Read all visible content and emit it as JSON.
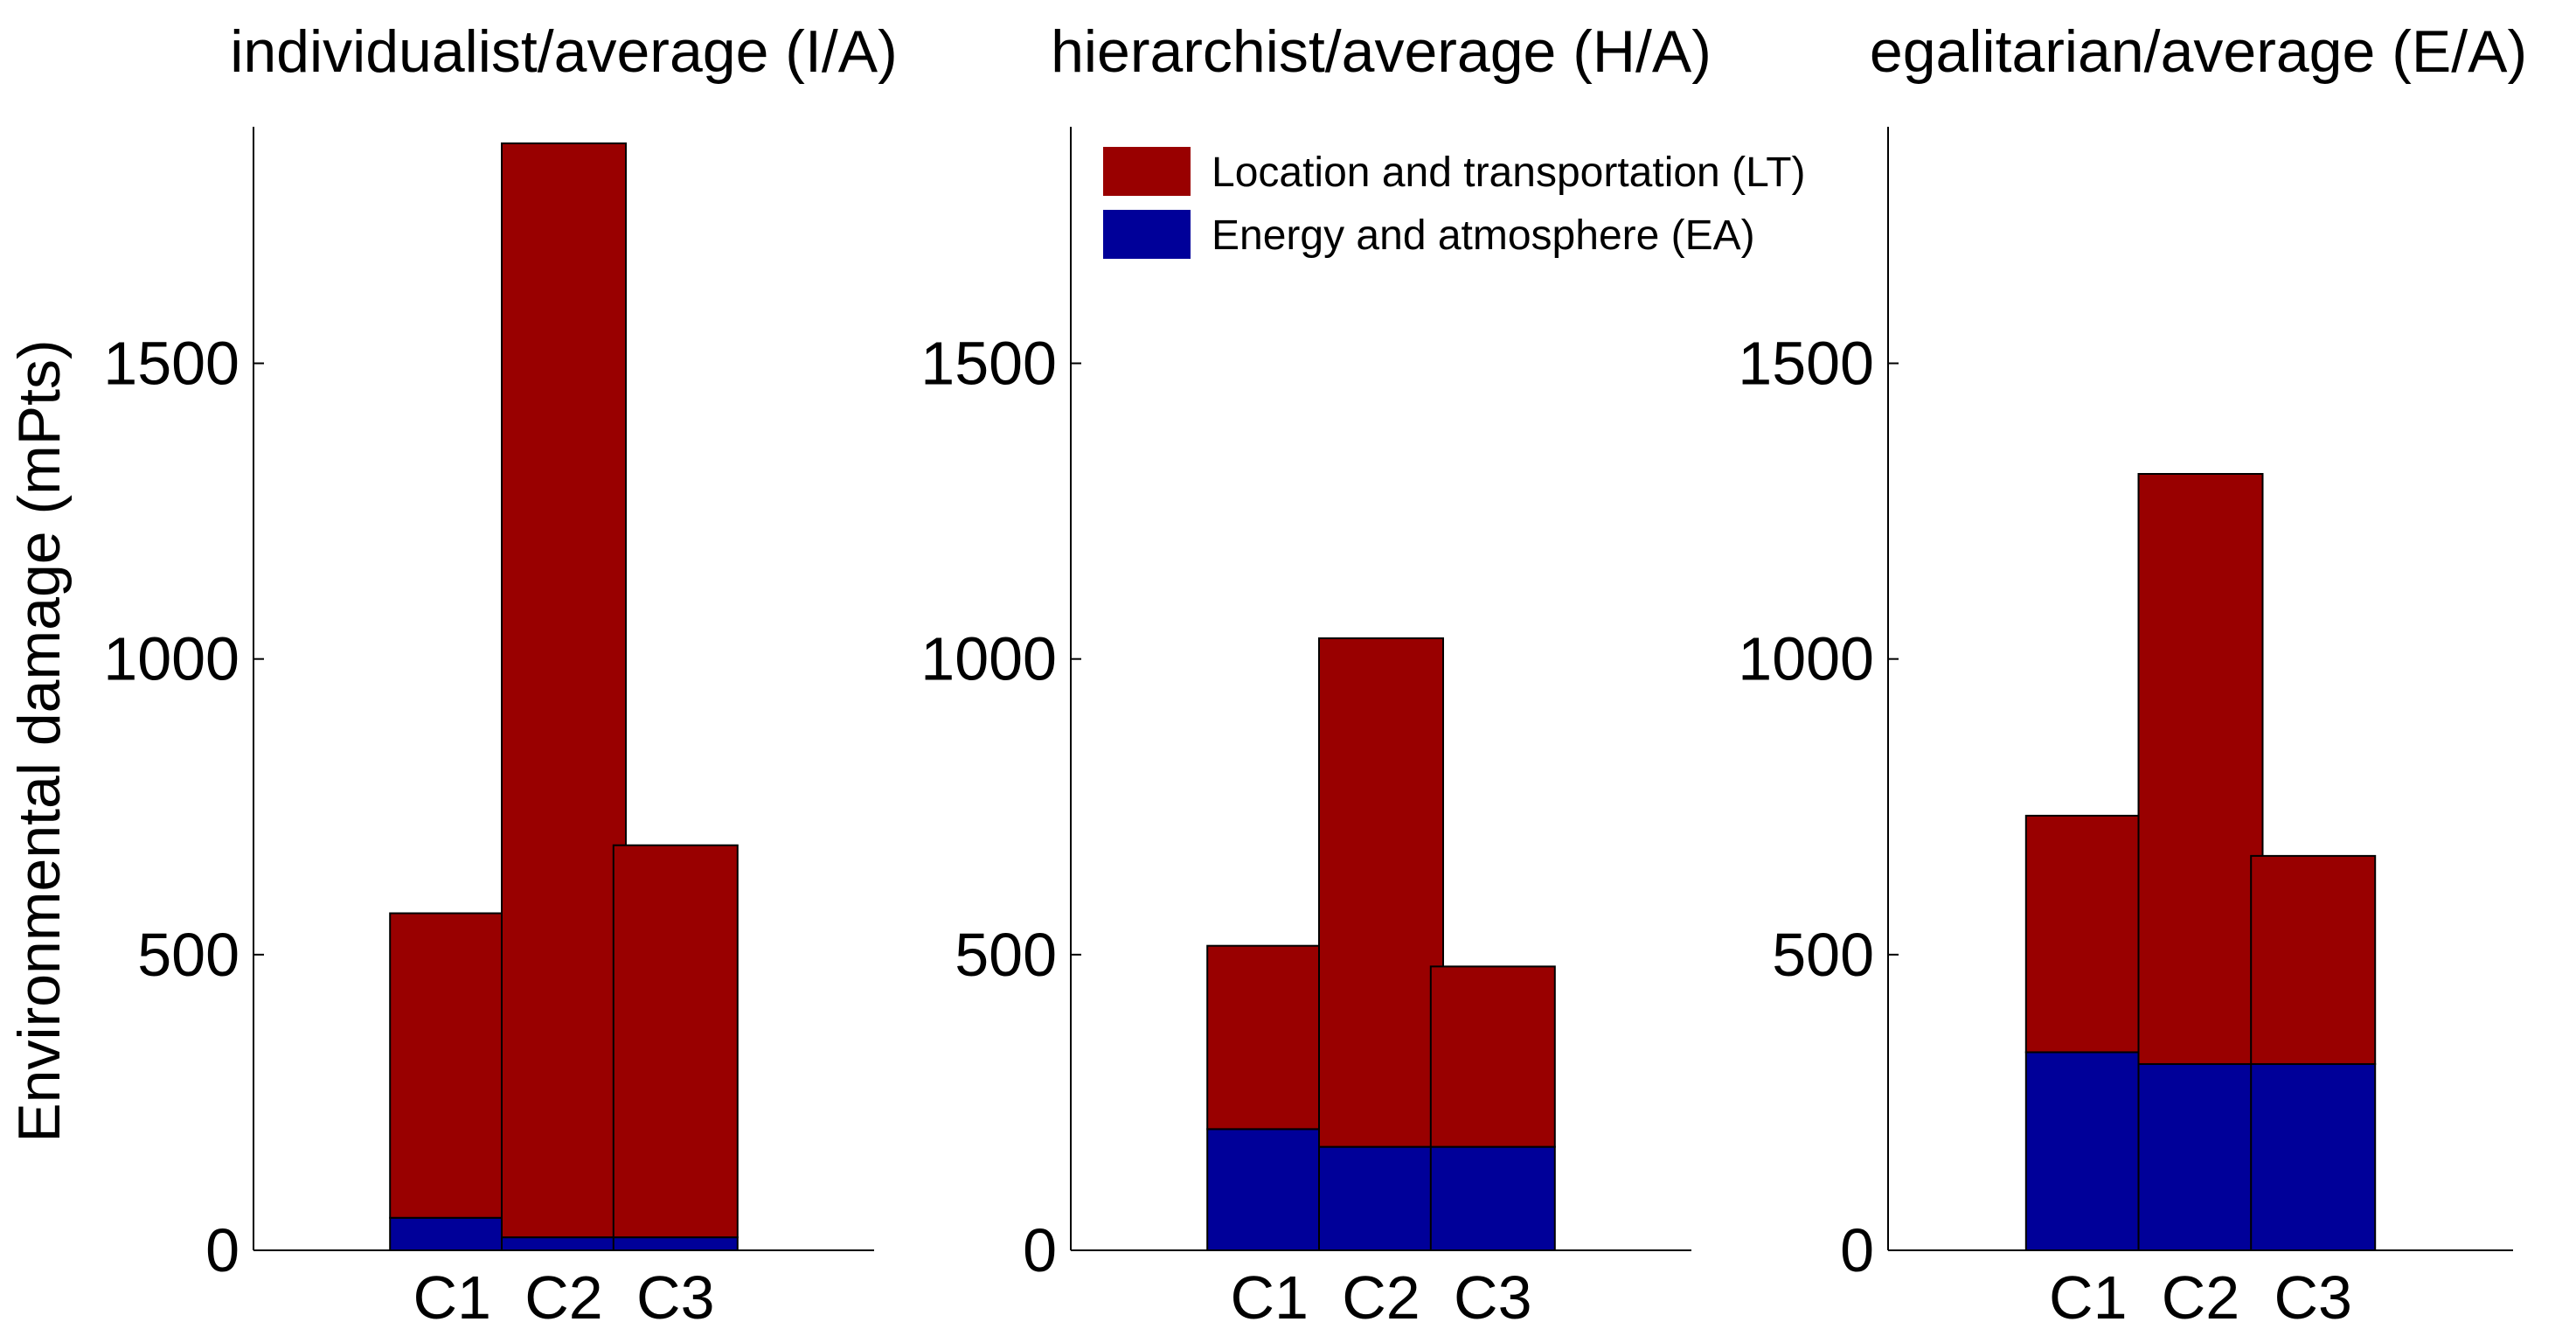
{
  "chart_data": [
    {
      "type": "bar",
      "stacked": true,
      "title": "individualist/average (I/A)",
      "ylabel": "Environmental damage (mPts)",
      "xlabel": "",
      "categories": [
        "C1",
        "C2",
        "C3"
      ],
      "ylim": [
        0,
        1900
      ],
      "yticks": [
        0,
        500,
        1000,
        1500
      ],
      "series": [
        {
          "name": "Energy and atmosphere (EA)",
          "color": "#000099",
          "values": [
            55,
            22,
            22
          ]
        },
        {
          "name": "Location and transportation (LT)",
          "color": "#990000",
          "values": [
            515,
            1850,
            663
          ]
        }
      ]
    },
    {
      "type": "bar",
      "stacked": true,
      "title": "hierarchist/average (H/A)",
      "ylabel": "",
      "xlabel": "",
      "categories": [
        "C1",
        "C2",
        "C3"
      ],
      "ylim": [
        0,
        1900
      ],
      "yticks": [
        0,
        500,
        1000,
        1500
      ],
      "legend_location": "top-left",
      "series": [
        {
          "name": "Energy and atmosphere (EA)",
          "color": "#000099",
          "values": [
            205,
            175,
            175
          ]
        },
        {
          "name": "Location and transportation (LT)",
          "color": "#990000",
          "values": [
            310,
            860,
            305
          ]
        }
      ]
    },
    {
      "type": "bar",
      "stacked": true,
      "title": "egalitarian/average (E/A)",
      "ylabel": "",
      "xlabel": "",
      "categories": [
        "C1",
        "C2",
        "C3"
      ],
      "ylim": [
        0,
        1900
      ],
      "yticks": [
        0,
        500,
        1000,
        1500
      ],
      "series": [
        {
          "name": "Energy and atmosphere (EA)",
          "color": "#000099",
          "values": [
            335,
            315,
            315
          ]
        },
        {
          "name": "Location and transportation (LT)",
          "color": "#990000",
          "values": [
            400,
            998,
            352
          ]
        }
      ]
    }
  ],
  "legend": {
    "items": [
      {
        "label": "Location and transportation (LT)",
        "color": "#990000"
      },
      {
        "label": "Energy and atmosphere (EA)",
        "color": "#000099"
      }
    ]
  }
}
